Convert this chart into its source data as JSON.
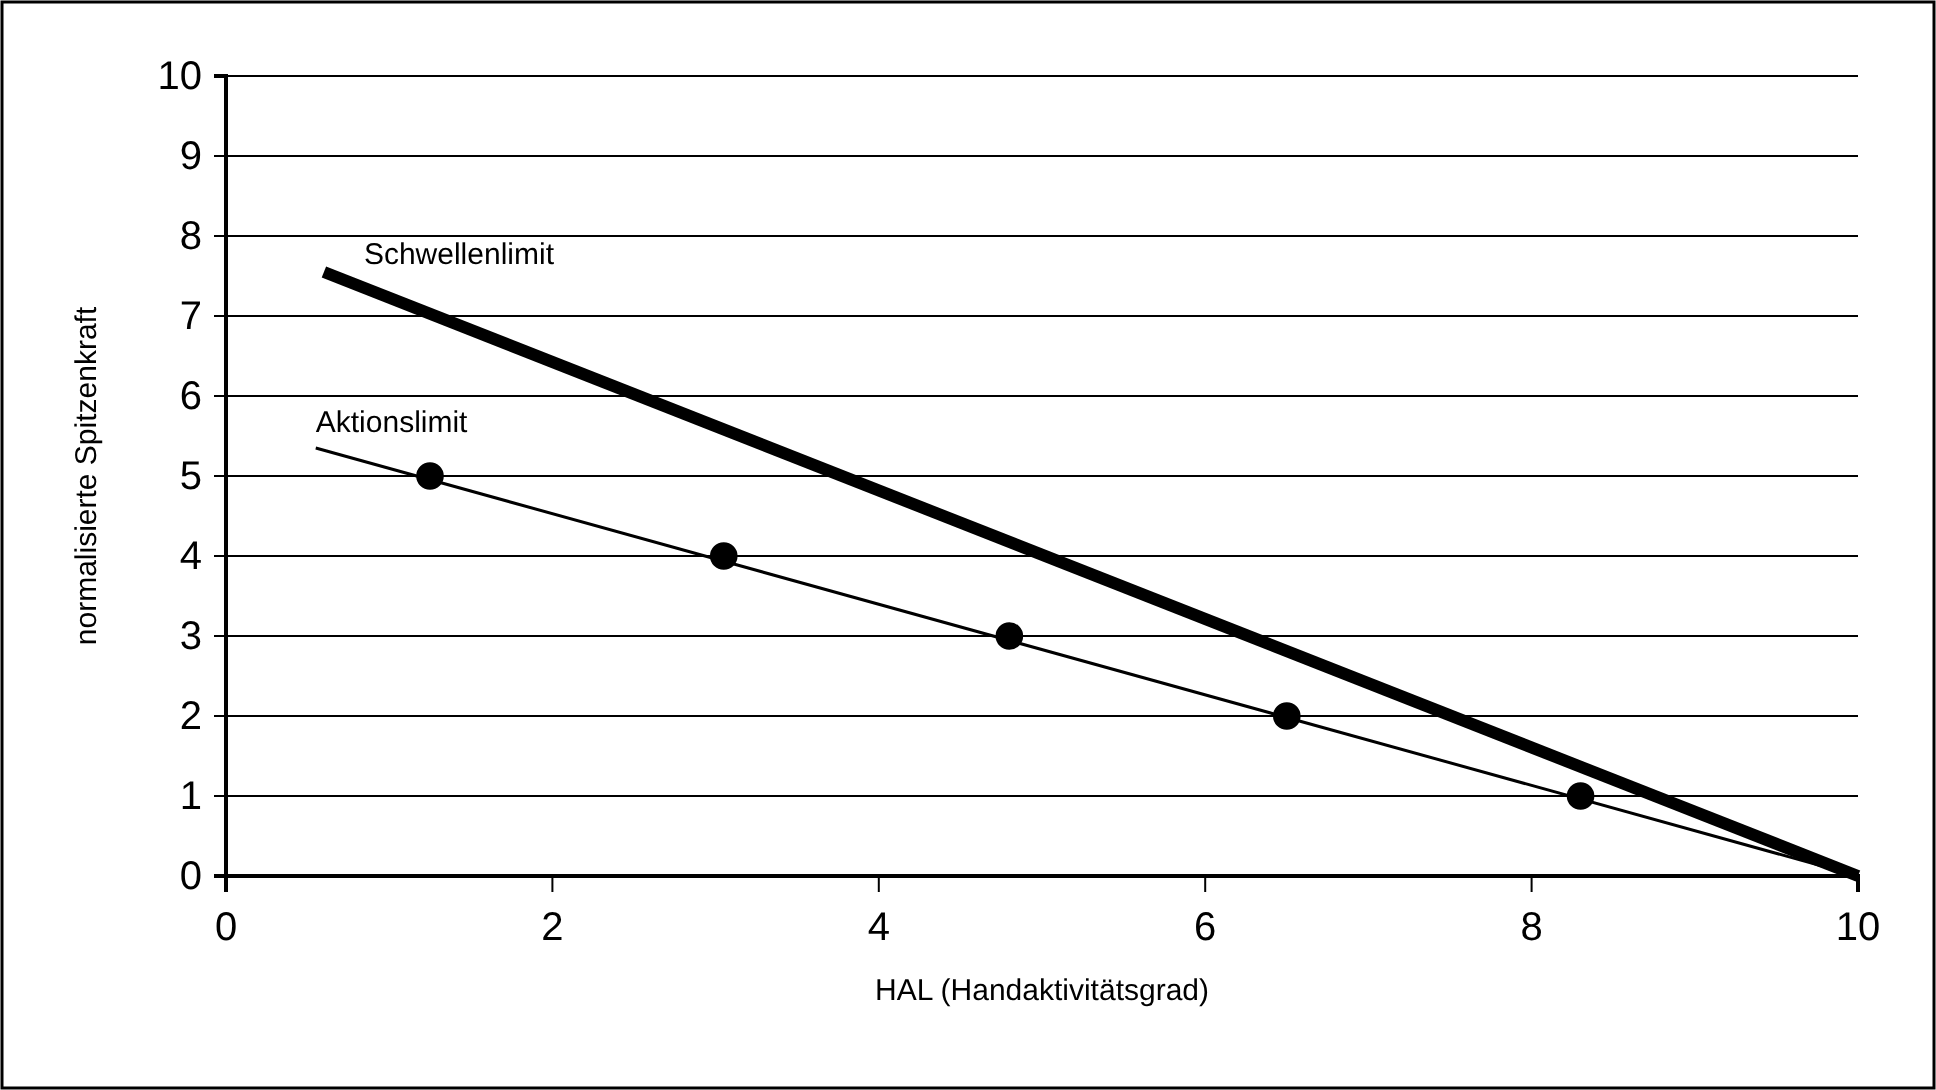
{
  "chart_data": {
    "type": "line",
    "xlabel": "HAL (Handaktivitätsgrad)",
    "ylabel": "normalisierte Spitzenkraft",
    "xlim": [
      0,
      10
    ],
    "xticks": [
      0,
      2,
      4,
      6,
      8,
      10
    ],
    "ylim": [
      0,
      10
    ],
    "yticks": [
      0,
      1,
      2,
      3,
      4,
      5,
      6,
      7,
      8,
      9,
      10
    ],
    "grid": "y",
    "series": [
      {
        "name": "Schwellenlimit",
        "color": "#000000",
        "marker": "none",
        "x": [
          0.6,
          10
        ],
        "values": [
          7.55,
          0
        ]
      },
      {
        "name": "Aktionslimit",
        "color": "#000000",
        "marker": "none",
        "x": [
          0.55,
          10
        ],
        "values": [
          5.35,
          0
        ]
      },
      {
        "type": "scatter",
        "color": "#000000",
        "marker": "circle",
        "x": [
          1.25,
          3.05,
          4.8,
          6.5,
          8.3
        ],
        "values": [
          5,
          4,
          3,
          2,
          1
        ]
      }
    ]
  }
}
